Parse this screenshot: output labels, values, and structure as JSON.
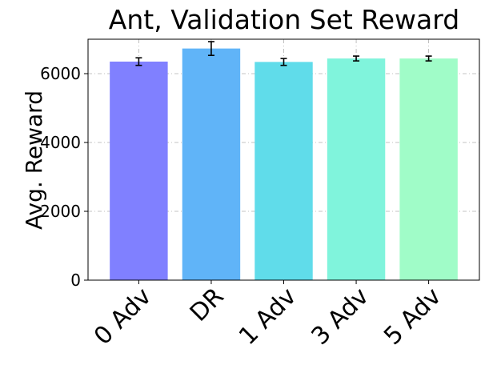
{
  "chart_data": {
    "type": "bar",
    "title": "Ant, Validation Set Reward",
    "xlabel": "",
    "ylabel": "Avg. Reward",
    "categories": [
      "0 Adv",
      "DR",
      "1 Adv",
      "3 Adv",
      "5 Adv"
    ],
    "values": [
      6350,
      6730,
      6340,
      6440,
      6440
    ],
    "errors": [
      110,
      200,
      100,
      70,
      70
    ],
    "colors": [
      "#8080ff",
      "#60b4f8",
      "#60dcea",
      "#80f4dc",
      "#a0fcc8"
    ],
    "ylim": [
      0,
      7000
    ],
    "yticks": [
      0,
      2000,
      4000,
      6000
    ],
    "ytick_labels": [
      "0",
      "2000",
      "4000",
      "6000"
    ],
    "grid": true,
    "legend": "none"
  }
}
